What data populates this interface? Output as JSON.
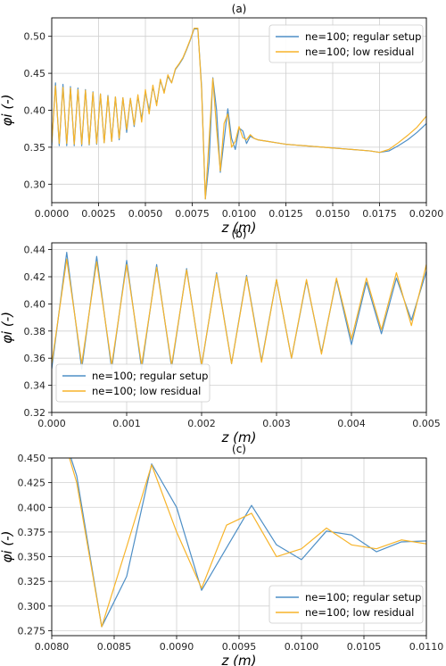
{
  "colors": {
    "regular": "#4e8fc6",
    "residual": "#f7b42a",
    "grid": "#d0d0d0",
    "axis": "#000000"
  },
  "chart_data": [
    {
      "type": "line",
      "title": "(a)",
      "xlabel": "z (m)",
      "ylabel": "φi (-)",
      "xlim": [
        0,
        0.02
      ],
      "ylim": [
        0.275,
        0.525
      ],
      "xticks": [
        "0.0000",
        "0.0025",
        "0.0050",
        "0.0075",
        "0.0100",
        "0.0125",
        "0.0150",
        "0.0175",
        "0.0200"
      ],
      "yticks": [
        "0.30",
        "0.35",
        "0.40",
        "0.45",
        "0.50"
      ],
      "grid": true,
      "legend_position": "top-right",
      "series": [
        {
          "name": "ne=100; regular setup",
          "x": [
            0,
            0.0002,
            0.0004,
            0.0006,
            0.0008,
            0.001,
            0.0012,
            0.0014,
            0.0016,
            0.0018,
            0.002,
            0.0022,
            0.0024,
            0.0026,
            0.0028,
            0.003,
            0.0032,
            0.0034,
            0.0036,
            0.0038,
            0.004,
            0.0042,
            0.0044,
            0.0046,
            0.0048,
            0.005,
            0.0052,
            0.0054,
            0.0056,
            0.0058,
            0.006,
            0.0062,
            0.0064,
            0.0066,
            0.0068,
            0.007,
            0.0072,
            0.0074,
            0.0076,
            0.0078,
            0.008,
            0.0082,
            0.0084,
            0.0086,
            0.0088,
            0.009,
            0.0092,
            0.0094,
            0.0096,
            0.0098,
            0.01,
            0.0102,
            0.0104,
            0.0106,
            0.0108,
            0.011,
            0.0115,
            0.012,
            0.0125,
            0.013,
            0.0135,
            0.014,
            0.0145,
            0.015,
            0.0155,
            0.016,
            0.0165,
            0.017,
            0.0175,
            0.018,
            0.0185,
            0.019,
            0.0195,
            0.02
          ],
          "y": [
            0.352,
            0.437,
            0.352,
            0.435,
            0.352,
            0.432,
            0.352,
            0.43,
            0.352,
            0.428,
            0.353,
            0.425,
            0.354,
            0.422,
            0.356,
            0.42,
            0.358,
            0.418,
            0.36,
            0.417,
            0.37,
            0.416,
            0.378,
            0.419,
            0.388,
            0.425,
            0.4,
            0.432,
            0.408,
            0.44,
            0.425,
            0.446,
            0.437,
            0.455,
            0.462,
            0.47,
            0.482,
            0.495,
            0.51,
            0.51,
            0.432,
            0.28,
            0.33,
            0.444,
            0.4,
            0.316,
            0.36,
            0.402,
            0.362,
            0.347,
            0.376,
            0.372,
            0.355,
            0.365,
            0.362,
            0.36,
            0.358,
            0.356,
            0.354,
            0.353,
            0.352,
            0.351,
            0.35,
            0.349,
            0.348,
            0.347,
            0.346,
            0.345,
            0.343,
            0.345,
            0.352,
            0.36,
            0.37,
            0.382
          ]
        },
        {
          "name": "ne=100; low residual",
          "x": [
            0,
            0.0002,
            0.0004,
            0.0006,
            0.0008,
            0.001,
            0.0012,
            0.0014,
            0.0016,
            0.0018,
            0.002,
            0.0022,
            0.0024,
            0.0026,
            0.0028,
            0.003,
            0.0032,
            0.0034,
            0.0036,
            0.0038,
            0.004,
            0.0042,
            0.0044,
            0.0046,
            0.0048,
            0.005,
            0.0052,
            0.0054,
            0.0056,
            0.0058,
            0.006,
            0.0062,
            0.0064,
            0.0066,
            0.0068,
            0.007,
            0.0072,
            0.0074,
            0.0076,
            0.0078,
            0.008,
            0.0082,
            0.0084,
            0.0086,
            0.0088,
            0.009,
            0.0092,
            0.0094,
            0.0096,
            0.0098,
            0.01,
            0.0102,
            0.0104,
            0.0106,
            0.0108,
            0.011,
            0.0115,
            0.012,
            0.0125,
            0.013,
            0.0135,
            0.014,
            0.0145,
            0.015,
            0.0155,
            0.016,
            0.0165,
            0.017,
            0.0175,
            0.018,
            0.0185,
            0.019,
            0.0195,
            0.02
          ],
          "y": [
            0.356,
            0.433,
            0.355,
            0.431,
            0.355,
            0.43,
            0.354,
            0.428,
            0.354,
            0.427,
            0.354,
            0.424,
            0.355,
            0.422,
            0.356,
            0.419,
            0.358,
            0.418,
            0.362,
            0.417,
            0.374,
            0.416,
            0.38,
            0.421,
            0.384,
            0.428,
            0.395,
            0.434,
            0.406,
            0.442,
            0.423,
            0.448,
            0.437,
            0.456,
            0.463,
            0.471,
            0.483,
            0.496,
            0.511,
            0.511,
            0.428,
            0.28,
            0.36,
            0.443,
            0.375,
            0.318,
            0.382,
            0.395,
            0.35,
            0.358,
            0.378,
            0.363,
            0.36,
            0.367,
            0.362,
            0.36,
            0.358,
            0.356,
            0.354,
            0.353,
            0.352,
            0.351,
            0.35,
            0.349,
            0.348,
            0.347,
            0.346,
            0.345,
            0.343,
            0.347,
            0.356,
            0.366,
            0.377,
            0.392
          ]
        }
      ]
    },
    {
      "type": "line",
      "title": "(b)",
      "xlabel": "z (m)",
      "ylabel": "φi (-)",
      "xlim": [
        0,
        0.005
      ],
      "ylim": [
        0.32,
        0.445
      ],
      "xticks": [
        "0.000",
        "0.001",
        "0.002",
        "0.003",
        "0.004",
        "0.005"
      ],
      "yticks": [
        "0.32",
        "0.34",
        "0.36",
        "0.38",
        "0.40",
        "0.42",
        "0.44"
      ],
      "grid": true,
      "legend_position": "bottom-left",
      "series": [
        {
          "name": "ne=100; regular setup",
          "x": [
            0,
            0.0002,
            0.0004,
            0.0006,
            0.0008,
            0.001,
            0.0012,
            0.0014,
            0.0016,
            0.0018,
            0.002,
            0.0022,
            0.0024,
            0.0026,
            0.0028,
            0.003,
            0.0032,
            0.0034,
            0.0036,
            0.0038,
            0.004,
            0.0042,
            0.0044,
            0.0046,
            0.0048,
            0.005
          ],
          "y": [
            0.352,
            0.438,
            0.352,
            0.435,
            0.352,
            0.432,
            0.352,
            0.429,
            0.353,
            0.426,
            0.354,
            0.423,
            0.356,
            0.421,
            0.358,
            0.418,
            0.36,
            0.417,
            0.364,
            0.418,
            0.37,
            0.416,
            0.378,
            0.419,
            0.388,
            0.424
          ]
        },
        {
          "name": "ne=100; low residual",
          "x": [
            0,
            0.0002,
            0.0004,
            0.0006,
            0.0008,
            0.001,
            0.0012,
            0.0014,
            0.0016,
            0.0018,
            0.002,
            0.0022,
            0.0024,
            0.0026,
            0.0028,
            0.003,
            0.0032,
            0.0034,
            0.0036,
            0.0038,
            0.004,
            0.0042,
            0.0044,
            0.0046,
            0.0048,
            0.005
          ],
          "y": [
            0.356,
            0.433,
            0.356,
            0.431,
            0.355,
            0.429,
            0.355,
            0.427,
            0.355,
            0.425,
            0.355,
            0.422,
            0.356,
            0.42,
            0.357,
            0.418,
            0.36,
            0.418,
            0.363,
            0.419,
            0.374,
            0.419,
            0.381,
            0.423,
            0.384,
            0.429
          ]
        }
      ]
    },
    {
      "type": "line",
      "title": "(c)",
      "xlabel": "z (m)",
      "ylabel": "φi (-)",
      "xlim": [
        0.008,
        0.011
      ],
      "ylim": [
        0.27,
        0.45
      ],
      "xticks": [
        "0.0080",
        "0.0085",
        "0.0090",
        "0.0095",
        "0.0100",
        "0.0105",
        "0.0110"
      ],
      "yticks": [
        "0.275",
        "0.300",
        "0.325",
        "0.350",
        "0.375",
        "0.400",
        "0.425",
        "0.450"
      ],
      "grid": true,
      "legend_position": "bottom-right",
      "series": [
        {
          "name": "ne=100; regular setup",
          "x": [
            0.008,
            0.0082,
            0.0084,
            0.0086,
            0.0088,
            0.009,
            0.0092,
            0.0094,
            0.0096,
            0.0098,
            0.01,
            0.0102,
            0.0104,
            0.0106,
            0.0108,
            0.011
          ],
          "y": [
            0.51,
            0.432,
            0.279,
            0.33,
            0.444,
            0.4,
            0.316,
            0.359,
            0.402,
            0.362,
            0.347,
            0.376,
            0.372,
            0.355,
            0.365,
            0.366
          ]
        },
        {
          "name": "ne=100; low residual",
          "x": [
            0.008,
            0.0082,
            0.0084,
            0.0086,
            0.0088,
            0.009,
            0.0092,
            0.0094,
            0.0096,
            0.0098,
            0.01,
            0.0102,
            0.0104,
            0.0106,
            0.0108,
            0.011
          ],
          "y": [
            0.511,
            0.425,
            0.279,
            0.36,
            0.443,
            0.375,
            0.318,
            0.382,
            0.394,
            0.35,
            0.358,
            0.379,
            0.362,
            0.358,
            0.367,
            0.363
          ]
        }
      ]
    }
  ]
}
